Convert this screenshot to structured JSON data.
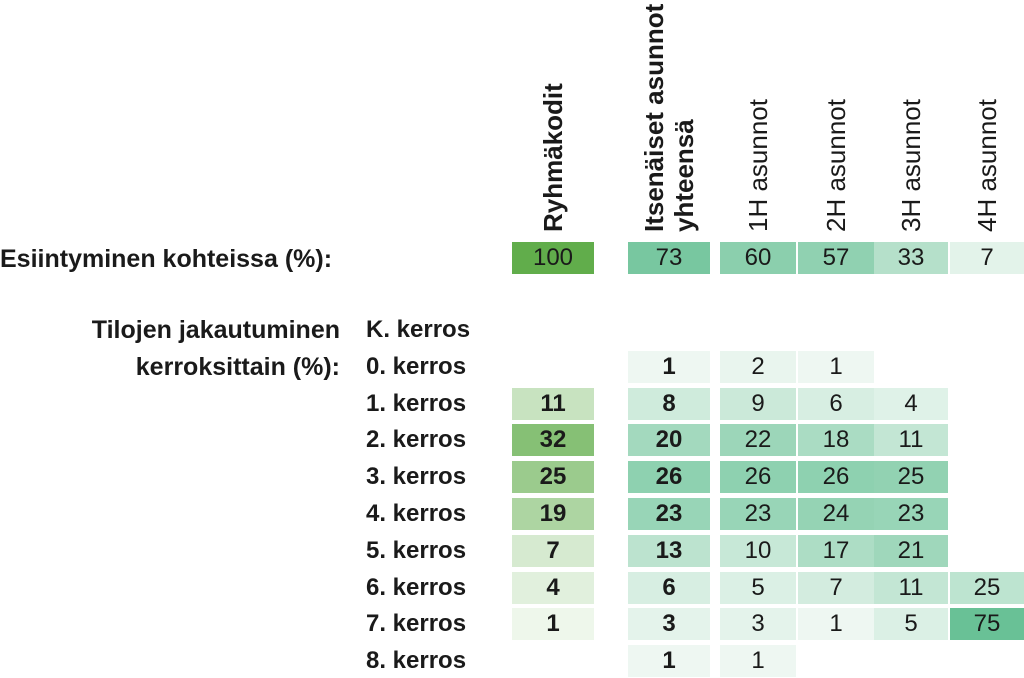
{
  "chart_data": {
    "type": "table",
    "columns": [
      {
        "label": "Ryhmäkodit",
        "bold": true
      },
      {
        "label": "Itsenäiset asunnot yhteensä",
        "lines": [
          "Itsenäiset asunnot",
          "yhteensä"
        ],
        "bold": true
      },
      {
        "label": "1H asunnot",
        "bold": false
      },
      {
        "label": "2H asunnot",
        "bold": false
      },
      {
        "label": "3H asunnot",
        "bold": false
      },
      {
        "label": "4H asunnot",
        "bold": false
      }
    ],
    "occurrence": {
      "label": "Esiintyminen kohteissa (%):",
      "values": [
        100,
        73,
        60,
        57,
        33,
        7
      ]
    },
    "distribution": {
      "label_lines": [
        "Tilojen jakautuminen",
        "kerroksittain (%):"
      ],
      "rows": [
        {
          "label": "K. kerros",
          "values": [
            null,
            null,
            null,
            null,
            null,
            null
          ]
        },
        {
          "label": "0. kerros",
          "values": [
            null,
            1,
            2,
            1,
            null,
            null
          ]
        },
        {
          "label": "1. kerros",
          "values": [
            11,
            8,
            9,
            6,
            4,
            null
          ]
        },
        {
          "label": "2. kerros",
          "values": [
            32,
            20,
            22,
            18,
            11,
            null
          ]
        },
        {
          "label": "3. kerros",
          "values": [
            25,
            26,
            26,
            26,
            25,
            null
          ]
        },
        {
          "label": "4. kerros",
          "values": [
            19,
            23,
            23,
            24,
            23,
            null
          ]
        },
        {
          "label": "5. kerros",
          "values": [
            7,
            13,
            10,
            17,
            21,
            null
          ]
        },
        {
          "label": "6. kerros",
          "values": [
            4,
            6,
            5,
            7,
            11,
            25
          ]
        },
        {
          "label": "7. kerros",
          "values": [
            1,
            3,
            3,
            1,
            5,
            75
          ]
        },
        {
          "label": "8. kerros",
          "values": [
            null,
            1,
            1,
            null,
            null,
            null
          ]
        }
      ]
    },
    "colors": {
      "group_scale": [
        "#f4faf2",
        "#61ad4b"
      ],
      "apartment_scale": [
        "#f4faf6",
        "#52b886"
      ]
    }
  }
}
